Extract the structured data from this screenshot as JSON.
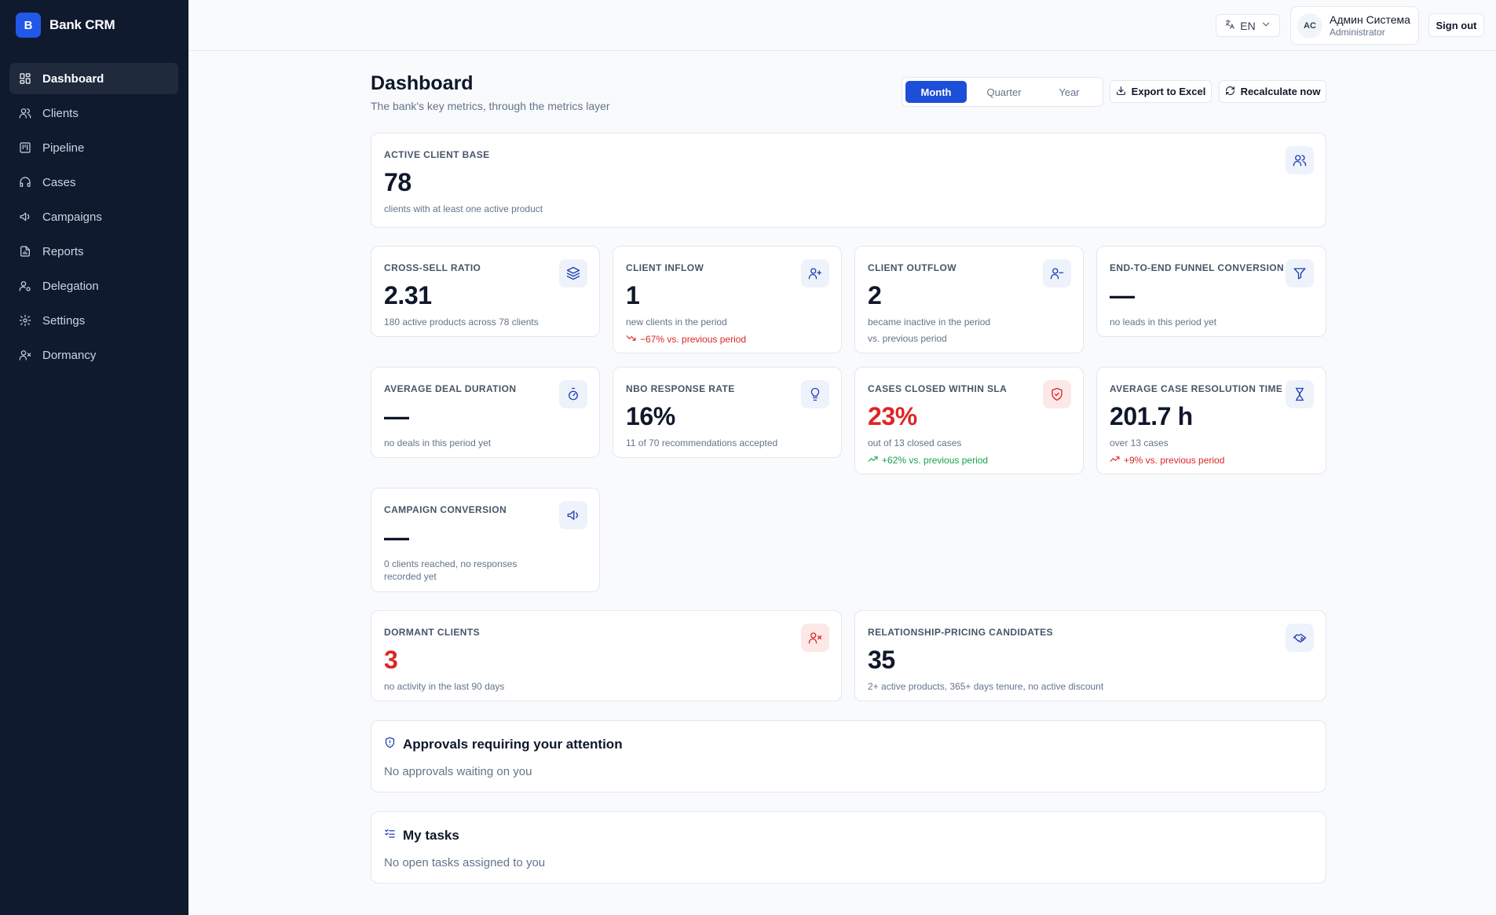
{
  "app": {
    "logo_letter": "B",
    "name": "Bank CRM"
  },
  "sidebar": {
    "items": [
      {
        "label": "Dashboard",
        "icon": "grid-icon",
        "active": true
      },
      {
        "label": "Clients",
        "icon": "users-icon"
      },
      {
        "label": "Pipeline",
        "icon": "kanban-icon"
      },
      {
        "label": "Cases",
        "icon": "headset-icon"
      },
      {
        "label": "Campaigns",
        "icon": "megaphone-icon"
      },
      {
        "label": "Reports",
        "icon": "file-chart-icon"
      },
      {
        "label": "Delegation",
        "icon": "user-cog-icon"
      },
      {
        "label": "Settings",
        "icon": "gear-icon"
      },
      {
        "label": "Dormancy",
        "icon": "user-x-icon"
      }
    ]
  },
  "topbar": {
    "language": "EN",
    "user": {
      "initials": "AC",
      "name": "Админ Система",
      "role": "Administrator"
    },
    "sign_out": "Sign out"
  },
  "header": {
    "title": "Dashboard",
    "subtitle": "The bank's key metrics, through the metrics layer",
    "periods": [
      "Month",
      "Quarter",
      "Year"
    ],
    "active_period": "Month",
    "export_label": "Export to Excel",
    "recalc_label": "Recalculate now"
  },
  "colors": {
    "accent": "#1d4ed8",
    "sidebar": "#0f1a2e",
    "danger": "#dc2626",
    "success": "#16a34a"
  },
  "metrics": {
    "active_base": {
      "label": "Active client base",
      "value": "78",
      "desc": "clients with at least one active product",
      "icon": "users-icon"
    },
    "cross_sell": {
      "label": "Cross-sell ratio",
      "value": "2.31",
      "desc": "180 active products across 78 clients",
      "icon": "layers-icon"
    },
    "inflow": {
      "label": "Client inflow",
      "value": "1",
      "desc": "new clients in the period",
      "trend": "−67% vs. previous period",
      "icon": "user-plus-icon"
    },
    "outflow": {
      "label": "Client outflow",
      "value": "2",
      "desc": "became inactive in the period",
      "trend": "vs. previous period",
      "icon": "user-minus-icon"
    },
    "funnel": {
      "label": "End-to-end funnel conversion",
      "value": "—",
      "desc": "no leads in this period yet",
      "icon": "filter-icon"
    },
    "deal_duration": {
      "label": "Average deal duration",
      "value": "—",
      "desc": "no deals in this period yet",
      "icon": "stopwatch-icon"
    },
    "nbo": {
      "label": "NBO response rate",
      "value": "16%",
      "desc": "11 of 70 recommendations accepted",
      "icon": "lightbulb-icon"
    },
    "sla": {
      "label": "Cases closed within SLA",
      "value": "23%",
      "desc": "out of 13 closed cases",
      "trend": "+62% vs. previous period",
      "icon": "shield-check-icon"
    },
    "resolution": {
      "label": "Average case resolution time",
      "value": "201.7 h",
      "desc": "over 13 cases",
      "trend": "+9% vs. previous period",
      "icon": "hourglass-icon"
    },
    "campaign": {
      "label": "Campaign conversion",
      "value": "—",
      "desc": "0 clients reached, no responses recorded yet",
      "icon": "megaphone-icon"
    },
    "dormant": {
      "label": "Dormant clients",
      "value": "3",
      "desc": "no activity in the last 90 days",
      "icon": "user-x-icon"
    },
    "pricing": {
      "label": "Relationship-pricing candidates",
      "value": "35",
      "desc": "2+ active products, 365+ days tenure, no active discount",
      "icon": "handshake-icon"
    }
  },
  "approvals": {
    "title": "Approvals requiring your attention",
    "empty": "No approvals waiting on you"
  },
  "tasks": {
    "title": "My tasks",
    "empty": "No open tasks assigned to you"
  }
}
